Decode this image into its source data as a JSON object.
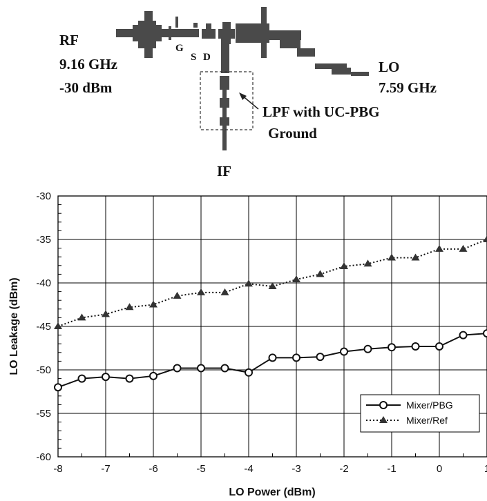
{
  "diagram": {
    "rf_label": "RF",
    "rf_freq": "9.16 GHz",
    "rf_power": "-30 dBm",
    "lo_label": "LO",
    "lo_freq": "7.59 GHz",
    "if_label": "IF",
    "gate_label": "G",
    "source_label": "S",
    "drain_label": "D",
    "lpf_line1": "LPF with UC-PBG",
    "lpf_line2": "Ground",
    "trace_color": "#4a4a4a"
  },
  "chart_data": {
    "type": "line",
    "title": "",
    "xlabel": "LO Power (dBm)",
    "ylabel": "LO Leakage (dBm)",
    "xlim": [
      -8,
      1
    ],
    "ylim": [
      -60,
      -30
    ],
    "xticks": [
      -8,
      -7,
      -6,
      -5,
      -4,
      -3,
      -2,
      -1,
      0,
      1
    ],
    "yticks": [
      -30,
      -35,
      -40,
      -45,
      -50,
      -55,
      -60
    ],
    "grid": true,
    "legend_position": "bottom-right",
    "x": [
      -8,
      -7.5,
      -7,
      -6.5,
      -6,
      -5.5,
      -5,
      -4.5,
      -4,
      -3.5,
      -3,
      -2.5,
      -2,
      -1.5,
      -1,
      -0.5,
      0,
      0.5,
      1
    ],
    "series": [
      {
        "name": "Mixer/PBG",
        "marker": "circle",
        "line": "solid",
        "values": [
          -52,
          -51,
          -50.8,
          -51,
          -50.7,
          -49.8,
          -49.8,
          -49.8,
          -50.3,
          -48.6,
          -48.6,
          -48.5,
          -47.9,
          -47.6,
          -47.4,
          -47.3,
          -47.3,
          -46,
          -45.8
        ]
      },
      {
        "name": "Mixer/Ref",
        "marker": "triangle",
        "line": "dotted",
        "values": [
          -45,
          -44,
          -43.6,
          -42.8,
          -42.5,
          -41.5,
          -41.1,
          -41.1,
          -40.1,
          -40.4,
          -39.6,
          -39,
          -38.1,
          -37.8,
          -37.1,
          -37.1,
          -36.1,
          -36.1,
          -35
        ]
      }
    ]
  }
}
